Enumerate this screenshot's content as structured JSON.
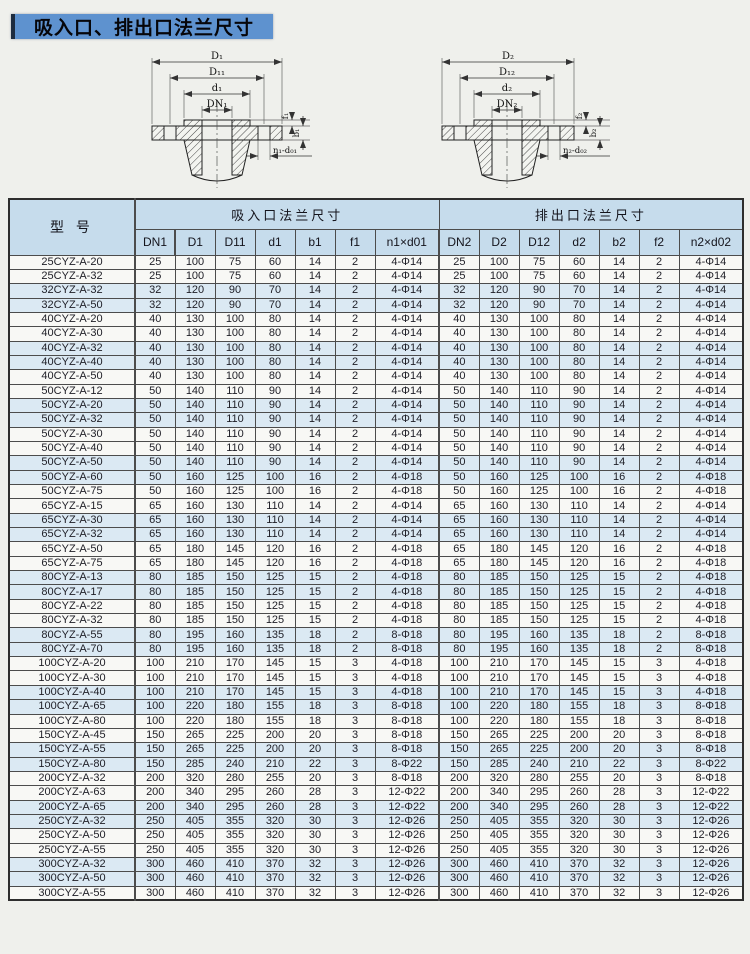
{
  "title": "吸入口、排出口法兰尺寸",
  "diagrams": {
    "suction": {
      "D": "D₁",
      "D1": "D₁₁",
      "d": "d₁",
      "DN": "DN₁",
      "f": "f₁",
      "b": "b₁",
      "holes": "n₁-d₀₁"
    },
    "discharge": {
      "D": "D₂",
      "D1": "D₁₂",
      "d": "d₂",
      "DN": "DN₂",
      "f": "f₂",
      "b": "b₂",
      "holes": "n₂-d₀₂"
    }
  },
  "table": {
    "model_header": "型 号",
    "groups": {
      "suction": "吸入口法兰尺寸",
      "discharge": "排出口法兰尺寸"
    },
    "suction_columns": [
      "DN1",
      "D1",
      "D11",
      "d1",
      "b1",
      "f1",
      "n1×d01"
    ],
    "discharge_columns": [
      "DN2",
      "D2",
      "D12",
      "d2",
      "b2",
      "f2",
      "n2×d02"
    ],
    "rows": [
      {
        "model": "25CYZ-A-20",
        "suction": [
          25,
          100,
          75,
          60,
          14,
          2,
          "4-Φ14"
        ],
        "discharge": [
          25,
          100,
          75,
          60,
          14,
          2,
          "4-Φ14"
        ]
      },
      {
        "model": "25CYZ-A-32",
        "suction": [
          25,
          100,
          75,
          60,
          14,
          2,
          "4-Φ14"
        ],
        "discharge": [
          25,
          100,
          75,
          60,
          14,
          2,
          "4-Φ14"
        ]
      },
      {
        "model": "32CYZ-A-32",
        "suction": [
          32,
          120,
          90,
          70,
          14,
          2,
          "4-Φ14"
        ],
        "discharge": [
          32,
          120,
          90,
          70,
          14,
          2,
          "4-Φ14"
        ]
      },
      {
        "model": "32CYZ-A-50",
        "suction": [
          32,
          120,
          90,
          70,
          14,
          2,
          "4-Φ14"
        ],
        "discharge": [
          32,
          120,
          90,
          70,
          14,
          2,
          "4-Φ14"
        ]
      },
      {
        "model": "40CYZ-A-20",
        "suction": [
          40,
          130,
          100,
          80,
          14,
          2,
          "4-Φ14"
        ],
        "discharge": [
          40,
          130,
          100,
          80,
          14,
          2,
          "4-Φ14"
        ]
      },
      {
        "model": "40CYZ-A-30",
        "suction": [
          40,
          130,
          100,
          80,
          14,
          2,
          "4-Φ14"
        ],
        "discharge": [
          40,
          130,
          100,
          80,
          14,
          2,
          "4-Φ14"
        ]
      },
      {
        "model": "40CYZ-A-32",
        "suction": [
          40,
          130,
          100,
          80,
          14,
          2,
          "4-Φ14"
        ],
        "discharge": [
          40,
          130,
          100,
          80,
          14,
          2,
          "4-Φ14"
        ]
      },
      {
        "model": "40CYZ-A-40",
        "suction": [
          40,
          130,
          100,
          80,
          14,
          2,
          "4-Φ14"
        ],
        "discharge": [
          40,
          130,
          100,
          80,
          14,
          2,
          "4-Φ14"
        ]
      },
      {
        "model": "40CYZ-A-50",
        "suction": [
          40,
          130,
          100,
          80,
          14,
          2,
          "4-Φ14"
        ],
        "discharge": [
          40,
          130,
          100,
          80,
          14,
          2,
          "4-Φ14"
        ]
      },
      {
        "model": "50CYZ-A-12",
        "suction": [
          50,
          140,
          110,
          90,
          14,
          2,
          "4-Φ14"
        ],
        "discharge": [
          50,
          140,
          110,
          90,
          14,
          2,
          "4-Φ14"
        ]
      },
      {
        "model": "50CYZ-A-20",
        "suction": [
          50,
          140,
          110,
          90,
          14,
          2,
          "4-Φ14"
        ],
        "discharge": [
          50,
          140,
          110,
          90,
          14,
          2,
          "4-Φ14"
        ]
      },
      {
        "model": "50CYZ-A-32",
        "suction": [
          50,
          140,
          110,
          90,
          14,
          2,
          "4-Φ14"
        ],
        "discharge": [
          50,
          140,
          110,
          90,
          14,
          2,
          "4-Φ14"
        ]
      },
      {
        "model": "50CYZ-A-30",
        "suction": [
          50,
          140,
          110,
          90,
          14,
          2,
          "4-Φ14"
        ],
        "discharge": [
          50,
          140,
          110,
          90,
          14,
          2,
          "4-Φ14"
        ]
      },
      {
        "model": "50CYZ-A-40",
        "suction": [
          50,
          140,
          110,
          90,
          14,
          2,
          "4-Φ14"
        ],
        "discharge": [
          50,
          140,
          110,
          90,
          14,
          2,
          "4-Φ14"
        ]
      },
      {
        "model": "50CYZ-A-50",
        "suction": [
          50,
          140,
          110,
          90,
          14,
          2,
          "4-Φ14"
        ],
        "discharge": [
          50,
          140,
          110,
          90,
          14,
          2,
          "4-Φ14"
        ]
      },
      {
        "model": "50CYZ-A-60",
        "suction": [
          50,
          160,
          125,
          100,
          16,
          2,
          "4-Φ18"
        ],
        "discharge": [
          50,
          160,
          125,
          100,
          16,
          2,
          "4-Φ18"
        ]
      },
      {
        "model": "50CYZ-A-75",
        "suction": [
          50,
          160,
          125,
          100,
          16,
          2,
          "4-Φ18"
        ],
        "discharge": [
          50,
          160,
          125,
          100,
          16,
          2,
          "4-Φ18"
        ]
      },
      {
        "model": "65CYZ-A-15",
        "suction": [
          65,
          160,
          130,
          110,
          14,
          2,
          "4-Φ14"
        ],
        "discharge": [
          65,
          160,
          130,
          110,
          14,
          2,
          "4-Φ14"
        ]
      },
      {
        "model": "65CYZ-A-30",
        "suction": [
          65,
          160,
          130,
          110,
          14,
          2,
          "4-Φ14"
        ],
        "discharge": [
          65,
          160,
          130,
          110,
          14,
          2,
          "4-Φ14"
        ]
      },
      {
        "model": "65CYZ-A-32",
        "suction": [
          65,
          160,
          130,
          110,
          14,
          2,
          "4-Φ14"
        ],
        "discharge": [
          65,
          160,
          130,
          110,
          14,
          2,
          "4-Φ14"
        ]
      },
      {
        "model": "65CYZ-A-50",
        "suction": [
          65,
          180,
          145,
          120,
          16,
          2,
          "4-Φ18"
        ],
        "discharge": [
          65,
          180,
          145,
          120,
          16,
          2,
          "4-Φ18"
        ]
      },
      {
        "model": "65CYZ-A-75",
        "suction": [
          65,
          180,
          145,
          120,
          16,
          2,
          "4-Φ18"
        ],
        "discharge": [
          65,
          180,
          145,
          120,
          16,
          2,
          "4-Φ18"
        ]
      },
      {
        "model": "80CYZ-A-13",
        "suction": [
          80,
          185,
          150,
          125,
          15,
          2,
          "4-Φ18"
        ],
        "discharge": [
          80,
          185,
          150,
          125,
          15,
          2,
          "4-Φ18"
        ]
      },
      {
        "model": "80CYZ-A-17",
        "suction": [
          80,
          185,
          150,
          125,
          15,
          2,
          "4-Φ18"
        ],
        "discharge": [
          80,
          185,
          150,
          125,
          15,
          2,
          "4-Φ18"
        ]
      },
      {
        "model": "80CYZ-A-22",
        "suction": [
          80,
          185,
          150,
          125,
          15,
          2,
          "4-Φ18"
        ],
        "discharge": [
          80,
          185,
          150,
          125,
          15,
          2,
          "4-Φ18"
        ]
      },
      {
        "model": "80CYZ-A-32",
        "suction": [
          80,
          185,
          150,
          125,
          15,
          2,
          "4-Φ18"
        ],
        "discharge": [
          80,
          185,
          150,
          125,
          15,
          2,
          "4-Φ18"
        ]
      },
      {
        "model": "80CYZ-A-55",
        "suction": [
          80,
          195,
          160,
          135,
          18,
          2,
          "8-Φ18"
        ],
        "discharge": [
          80,
          195,
          160,
          135,
          18,
          2,
          "8-Φ18"
        ]
      },
      {
        "model": "80CYZ-A-70",
        "suction": [
          80,
          195,
          160,
          135,
          18,
          2,
          "8-Φ18"
        ],
        "discharge": [
          80,
          195,
          160,
          135,
          18,
          2,
          "8-Φ18"
        ]
      },
      {
        "model": "100CYZ-A-20",
        "suction": [
          100,
          210,
          170,
          145,
          15,
          3,
          "4-Φ18"
        ],
        "discharge": [
          100,
          210,
          170,
          145,
          15,
          3,
          "4-Φ18"
        ]
      },
      {
        "model": "100CYZ-A-30",
        "suction": [
          100,
          210,
          170,
          145,
          15,
          3,
          "4-Φ18"
        ],
        "discharge": [
          100,
          210,
          170,
          145,
          15,
          3,
          "4-Φ18"
        ]
      },
      {
        "model": "100CYZ-A-40",
        "suction": [
          100,
          210,
          170,
          145,
          15,
          3,
          "4-Φ18"
        ],
        "discharge": [
          100,
          210,
          170,
          145,
          15,
          3,
          "4-Φ18"
        ]
      },
      {
        "model": "100CYZ-A-65",
        "suction": [
          100,
          220,
          180,
          155,
          18,
          3,
          "8-Φ18"
        ],
        "discharge": [
          100,
          220,
          180,
          155,
          18,
          3,
          "8-Φ18"
        ]
      },
      {
        "model": "100CYZ-A-80",
        "suction": [
          100,
          220,
          180,
          155,
          18,
          3,
          "8-Φ18"
        ],
        "discharge": [
          100,
          220,
          180,
          155,
          18,
          3,
          "8-Φ18"
        ]
      },
      {
        "model": "150CYZ-A-45",
        "suction": [
          150,
          265,
          225,
          200,
          20,
          3,
          "8-Φ18"
        ],
        "discharge": [
          150,
          265,
          225,
          200,
          20,
          3,
          "8-Φ18"
        ]
      },
      {
        "model": "150CYZ-A-55",
        "suction": [
          150,
          265,
          225,
          200,
          20,
          3,
          "8-Φ18"
        ],
        "discharge": [
          150,
          265,
          225,
          200,
          20,
          3,
          "8-Φ18"
        ]
      },
      {
        "model": "150CYZ-A-80",
        "suction": [
          150,
          285,
          240,
          210,
          22,
          3,
          "8-Φ22"
        ],
        "discharge": [
          150,
          285,
          240,
          210,
          22,
          3,
          "8-Φ22"
        ]
      },
      {
        "model": "200CYZ-A-32",
        "suction": [
          200,
          320,
          280,
          255,
          20,
          3,
          "8-Φ18"
        ],
        "discharge": [
          200,
          320,
          280,
          255,
          20,
          3,
          "8-Φ18"
        ]
      },
      {
        "model": "200CYZ-A-63",
        "suction": [
          200,
          340,
          295,
          260,
          28,
          3,
          "12-Φ22"
        ],
        "discharge": [
          200,
          340,
          295,
          260,
          28,
          3,
          "12-Φ22"
        ]
      },
      {
        "model": "200CYZ-A-65",
        "suction": [
          200,
          340,
          295,
          260,
          28,
          3,
          "12-Φ22"
        ],
        "discharge": [
          200,
          340,
          295,
          260,
          28,
          3,
          "12-Φ22"
        ]
      },
      {
        "model": "250CYZ-A-32",
        "suction": [
          250,
          405,
          355,
          320,
          30,
          3,
          "12-Φ26"
        ],
        "discharge": [
          250,
          405,
          355,
          320,
          30,
          3,
          "12-Φ26"
        ]
      },
      {
        "model": "250CYZ-A-50",
        "suction": [
          250,
          405,
          355,
          320,
          30,
          3,
          "12-Φ26"
        ],
        "discharge": [
          250,
          405,
          355,
          320,
          30,
          3,
          "12-Φ26"
        ]
      },
      {
        "model": "250CYZ-A-55",
        "suction": [
          250,
          405,
          355,
          320,
          30,
          3,
          "12-Φ26"
        ],
        "discharge": [
          250,
          405,
          355,
          320,
          30,
          3,
          "12-Φ26"
        ]
      },
      {
        "model": "300CYZ-A-32",
        "suction": [
          300,
          460,
          410,
          370,
          32,
          3,
          "12-Φ26"
        ],
        "discharge": [
          300,
          460,
          410,
          370,
          32,
          3,
          "12-Φ26"
        ]
      },
      {
        "model": "300CYZ-A-50",
        "suction": [
          300,
          460,
          410,
          370,
          32,
          3,
          "12-Φ26"
        ],
        "discharge": [
          300,
          460,
          410,
          370,
          32,
          3,
          "12-Φ26"
        ]
      },
      {
        "model": "300CYZ-A-55",
        "suction": [
          300,
          460,
          410,
          370,
          32,
          3,
          "12-Φ26"
        ],
        "discharge": [
          300,
          460,
          410,
          370,
          32,
          3,
          "12-Φ26"
        ]
      }
    ]
  },
  "colors": {
    "title_bar": "#5e92cf",
    "header_bg": "#c6dcec",
    "stripe_bg": "#dbe9f3",
    "row_bg": "#f8f8f5",
    "paper": "#eff0ec",
    "border": "#4c4c4c"
  }
}
